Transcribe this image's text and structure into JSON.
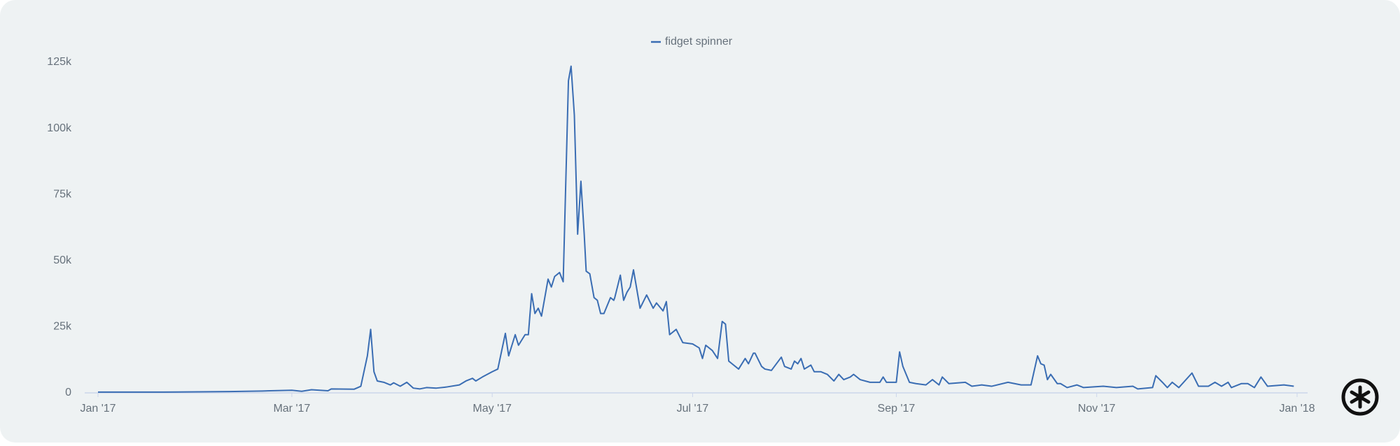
{
  "chart_data": {
    "type": "line",
    "x": [
      0,
      20,
      40,
      50,
      59,
      62,
      65,
      70,
      71,
      78,
      80,
      82,
      83,
      84,
      85,
      87,
      89,
      90,
      92,
      94,
      96,
      98,
      100,
      103,
      106,
      110,
      112,
      114,
      115,
      117,
      120,
      121.7,
      124,
      125,
      127,
      128,
      130,
      131,
      132,
      133,
      134,
      135,
      137,
      138,
      139,
      140.5,
      141.6,
      143.2,
      144,
      145,
      146,
      147,
      148,
      148.6,
      149.7,
      151,
      152,
      153,
      154,
      156,
      157,
      157.3,
      159,
      160,
      161,
      162,
      163,
      165,
      167,
      169,
      170,
      172,
      173,
      174,
      176,
      178,
      181,
      183,
      184,
      185,
      187,
      188.6,
      190,
      191,
      192,
      193,
      195,
      197,
      198,
      199.5,
      200,
      202,
      203,
      205,
      208,
      209,
      211,
      212,
      213,
      214,
      215,
      217,
      218,
      220,
      222,
      224,
      225.5,
      227,
      229,
      230,
      232,
      235,
      238,
      239,
      240,
      243,
      244,
      245,
      247,
      249,
      252,
      254,
      256,
      257,
      259,
      264,
      266,
      269,
      272,
      277,
      281,
      284,
      286,
      287,
      288,
      289,
      290,
      292,
      293,
      295,
      298,
      300,
      306,
      310,
      315,
      316.5,
      321,
      322,
      324,
      325.5,
      327,
      329,
      333,
      335,
      338,
      340,
      342,
      344,
      345,
      348,
      350,
      352,
      354,
      356,
      361,
      364
    ],
    "series": [
      {
        "name": "fidget spinner",
        "color": "#3a6db3",
        "values": [
          300,
          300,
          500,
          700,
          1000,
          600,
          1200,
          800,
          1500,
          1400,
          2500,
          14000,
          24000,
          8000,
          4500,
          4000,
          3000,
          3800,
          2500,
          4000,
          1800,
          1500,
          2000,
          1800,
          2200,
          3000,
          4500,
          5500,
          4500,
          6000,
          8000,
          9000,
          22500,
          14000,
          22000,
          18000,
          22000,
          22000,
          37500,
          30000,
          32000,
          29000,
          43000,
          40000,
          44000,
          45500,
          42000,
          118000,
          123500,
          105000,
          60000,
          80000,
          60000,
          46000,
          45000,
          36000,
          35000,
          30000,
          30000,
          36000,
          35000,
          36000,
          44500,
          35000,
          38000,
          40000,
          46500,
          32000,
          37000,
          32000,
          34000,
          31000,
          34500,
          22000,
          24000,
          19000,
          18500,
          17000,
          13000,
          18000,
          16000,
          13000,
          27000,
          26000,
          12000,
          11000,
          9000,
          13000,
          11000,
          15000,
          15000,
          10000,
          9000,
          8500,
          13500,
          10000,
          9000,
          12000,
          11000,
          13000,
          9000,
          10500,
          8000,
          8000,
          7000,
          4500,
          7000,
          5000,
          6000,
          7000,
          5000,
          4000,
          4000,
          6000,
          4000,
          4000,
          15500,
          10000,
          4000,
          3500,
          3000,
          5000,
          3000,
          6000,
          3500,
          4000,
          2500,
          3000,
          2500,
          4000,
          3000,
          3000,
          14000,
          11000,
          10500,
          5000,
          7000,
          3500,
          3500,
          2000,
          3000,
          2000,
          2500,
          2000,
          2500,
          1500,
          2000,
          6500,
          4000,
          2000,
          4000,
          2000,
          7500,
          2500,
          2500,
          4000,
          2500,
          4000,
          2000,
          3500,
          3500,
          2000,
          6000,
          2500,
          3000,
          2500
        ]
      }
    ],
    "xlim": [
      0,
      365
    ],
    "xticks": [
      {
        "value": 0,
        "label": "Jan '17"
      },
      {
        "value": 59,
        "label": "Mar '17"
      },
      {
        "value": 120,
        "label": "May '17"
      },
      {
        "value": 181,
        "label": "Jul '17"
      },
      {
        "value": 243,
        "label": "Sep '17"
      },
      {
        "value": 304,
        "label": "Nov '17"
      },
      {
        "value": 365,
        "label": "Jan '18"
      }
    ],
    "ylim": [
      0,
      125000
    ],
    "yticks": [
      0,
      {
        "value": 25000,
        "label": "25k"
      },
      {
        "value": 50000,
        "label": "50k"
      },
      {
        "value": 75000,
        "label": "75k"
      },
      {
        "value": 100000,
        "label": "100k"
      },
      {
        "value": 125000,
        "label": "125k"
      }
    ],
    "legend": "top"
  }
}
